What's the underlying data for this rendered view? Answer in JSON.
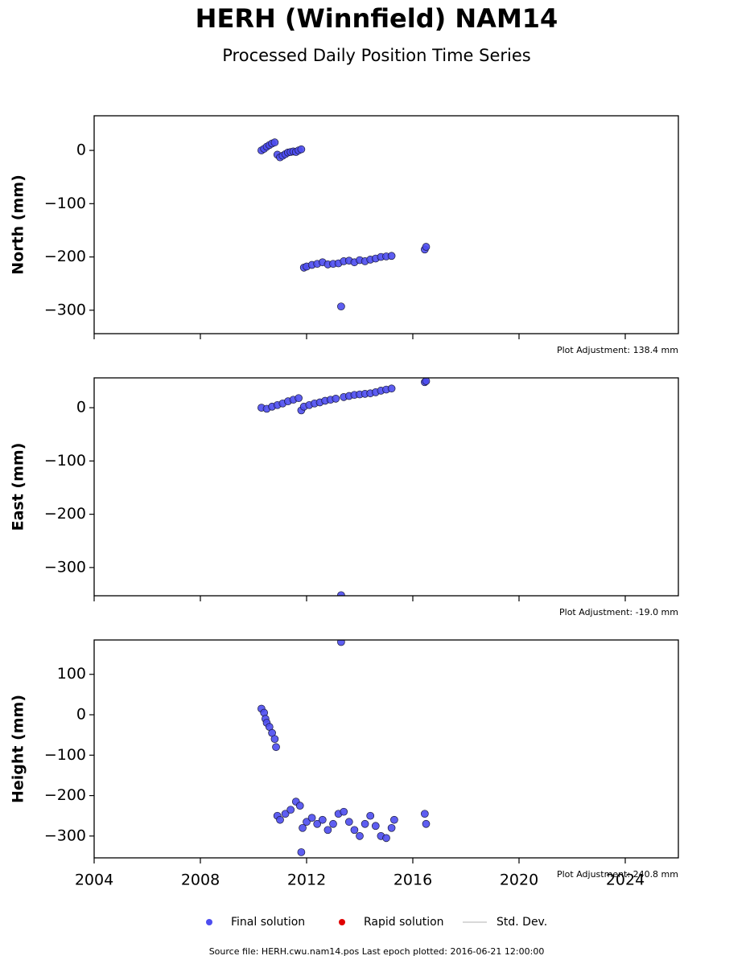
{
  "figure": {
    "title": "HERH (Winnfield) NAM14",
    "subtitle": "Processed Daily Position Time Series",
    "legend": [
      {
        "name": "Final solution",
        "color": "#4d4df0",
        "marker": "dot"
      },
      {
        "name": "Rapid solution",
        "color": "#e00000",
        "marker": "dot"
      },
      {
        "name": "Std. Dev.",
        "color": "#cccccc",
        "marker": "line"
      }
    ],
    "source": "Source file: HERH.cwu.nam14.pos  Last epoch plotted: 2016-06-21 12:00:00"
  },
  "chart_data": [
    {
      "type": "scatter",
      "y_label": "North (mm)",
      "annotation": "Plot Adjustment: 138.4 mm",
      "xlim": [
        2004,
        2026
      ],
      "xticks": [
        2004,
        2008,
        2012,
        2016,
        2020,
        2024
      ],
      "ylim": [
        -344,
        65
      ],
      "yticks": [
        0,
        {
          "value": -100,
          "label": "−100"
        },
        {
          "value": -200,
          "label": "−200"
        },
        {
          "value": -300,
          "label": "−300"
        }
      ],
      "series": [
        {
          "color": "#4d4df0",
          "x": [
            2010.3,
            2010.4,
            2010.5,
            2010.6,
            2010.7,
            2010.8,
            2010.9,
            2011.0,
            2011.1,
            2011.2,
            2011.3,
            2011.4,
            2011.5,
            2011.6,
            2011.7,
            2011.8,
            2011.9,
            2012.0,
            2012.2,
            2012.4,
            2012.6,
            2012.8,
            2013.0,
            2013.2,
            2013.3,
            2013.4,
            2013.6,
            2013.8,
            2014.0,
            2014.2,
            2014.4,
            2014.6,
            2014.8,
            2015.0,
            2015.2,
            2016.45,
            2016.5
          ],
          "values": [
            0,
            3,
            7,
            10,
            13,
            15,
            -8,
            -13,
            -10,
            -7,
            -4,
            -3,
            -2,
            -3,
            0,
            2,
            -220,
            -218,
            -215,
            -213,
            -210,
            -214,
            -213,
            -212,
            -293,
            -208,
            -207,
            -210,
            -206,
            -208,
            -205,
            -203,
            -200,
            -199,
            -198,
            -186,
            -181
          ]
        }
      ]
    },
    {
      "type": "scatter",
      "y_label": "East (mm)",
      "annotation": "Plot Adjustment: -19.0 mm",
      "xlim": [
        2004,
        2026
      ],
      "xticks": [
        2004,
        2008,
        2012,
        2016,
        2020,
        2024
      ],
      "ylim": [
        -353,
        56
      ],
      "yticks": [
        0,
        {
          "value": -100,
          "label": "−100"
        },
        {
          "value": -200,
          "label": "−200"
        },
        {
          "value": -300,
          "label": "−300"
        }
      ],
      "series": [
        {
          "color": "#4d4df0",
          "x": [
            2010.3,
            2010.5,
            2010.7,
            2010.9,
            2011.1,
            2011.3,
            2011.5,
            2011.7,
            2011.8,
            2011.9,
            2012.1,
            2012.3,
            2012.5,
            2012.7,
            2012.9,
            2013.1,
            2013.3,
            2013.4,
            2013.6,
            2013.8,
            2014.0,
            2014.2,
            2014.4,
            2014.6,
            2014.8,
            2015.0,
            2015.2,
            2016.45,
            2016.5
          ],
          "values": [
            0,
            -2,
            2,
            5,
            8,
            12,
            15,
            18,
            -5,
            2,
            5,
            8,
            10,
            13,
            15,
            17,
            -352,
            20,
            22,
            24,
            25,
            26,
            27,
            29,
            32,
            34,
            36,
            48,
            50
          ]
        }
      ]
    },
    {
      "type": "scatter",
      "y_label": "Height (mm)",
      "annotation": "Plot Adjustment: 240.8 mm",
      "xlim": [
        2004,
        2026
      ],
      "xticks": [
        2004,
        2008,
        2012,
        2016,
        2020,
        2024
      ],
      "ylim": [
        -354,
        185
      ],
      "yticks": [
        100,
        0,
        {
          "value": -100,
          "label": "−100"
        },
        {
          "value": -200,
          "label": "−200"
        },
        {
          "value": -300,
          "label": "−300"
        }
      ],
      "series": [
        {
          "color": "#4d4df0",
          "x": [
            2010.3,
            2010.4,
            2010.45,
            2010.5,
            2010.6,
            2010.7,
            2010.8,
            2010.85,
            2010.9,
            2011.0,
            2011.2,
            2011.4,
            2011.6,
            2011.75,
            2011.8,
            2011.85,
            2012.0,
            2012.2,
            2012.4,
            2012.6,
            2012.8,
            2013.0,
            2013.2,
            2013.3,
            2013.4,
            2013.6,
            2013.8,
            2014.0,
            2014.2,
            2014.4,
            2014.6,
            2014.8,
            2015.0,
            2015.2,
            2015.3,
            2016.45,
            2016.5
          ],
          "values": [
            15,
            5,
            -10,
            -20,
            -30,
            -45,
            -60,
            -80,
            -250,
            -260,
            -245,
            -235,
            -215,
            -225,
            -340,
            -280,
            -265,
            -255,
            -270,
            -260,
            -285,
            -270,
            -245,
            180,
            -240,
            -265,
            -285,
            -300,
            -270,
            -250,
            -275,
            -300,
            -305,
            -280,
            -260,
            -245,
            -270
          ]
        }
      ]
    }
  ]
}
